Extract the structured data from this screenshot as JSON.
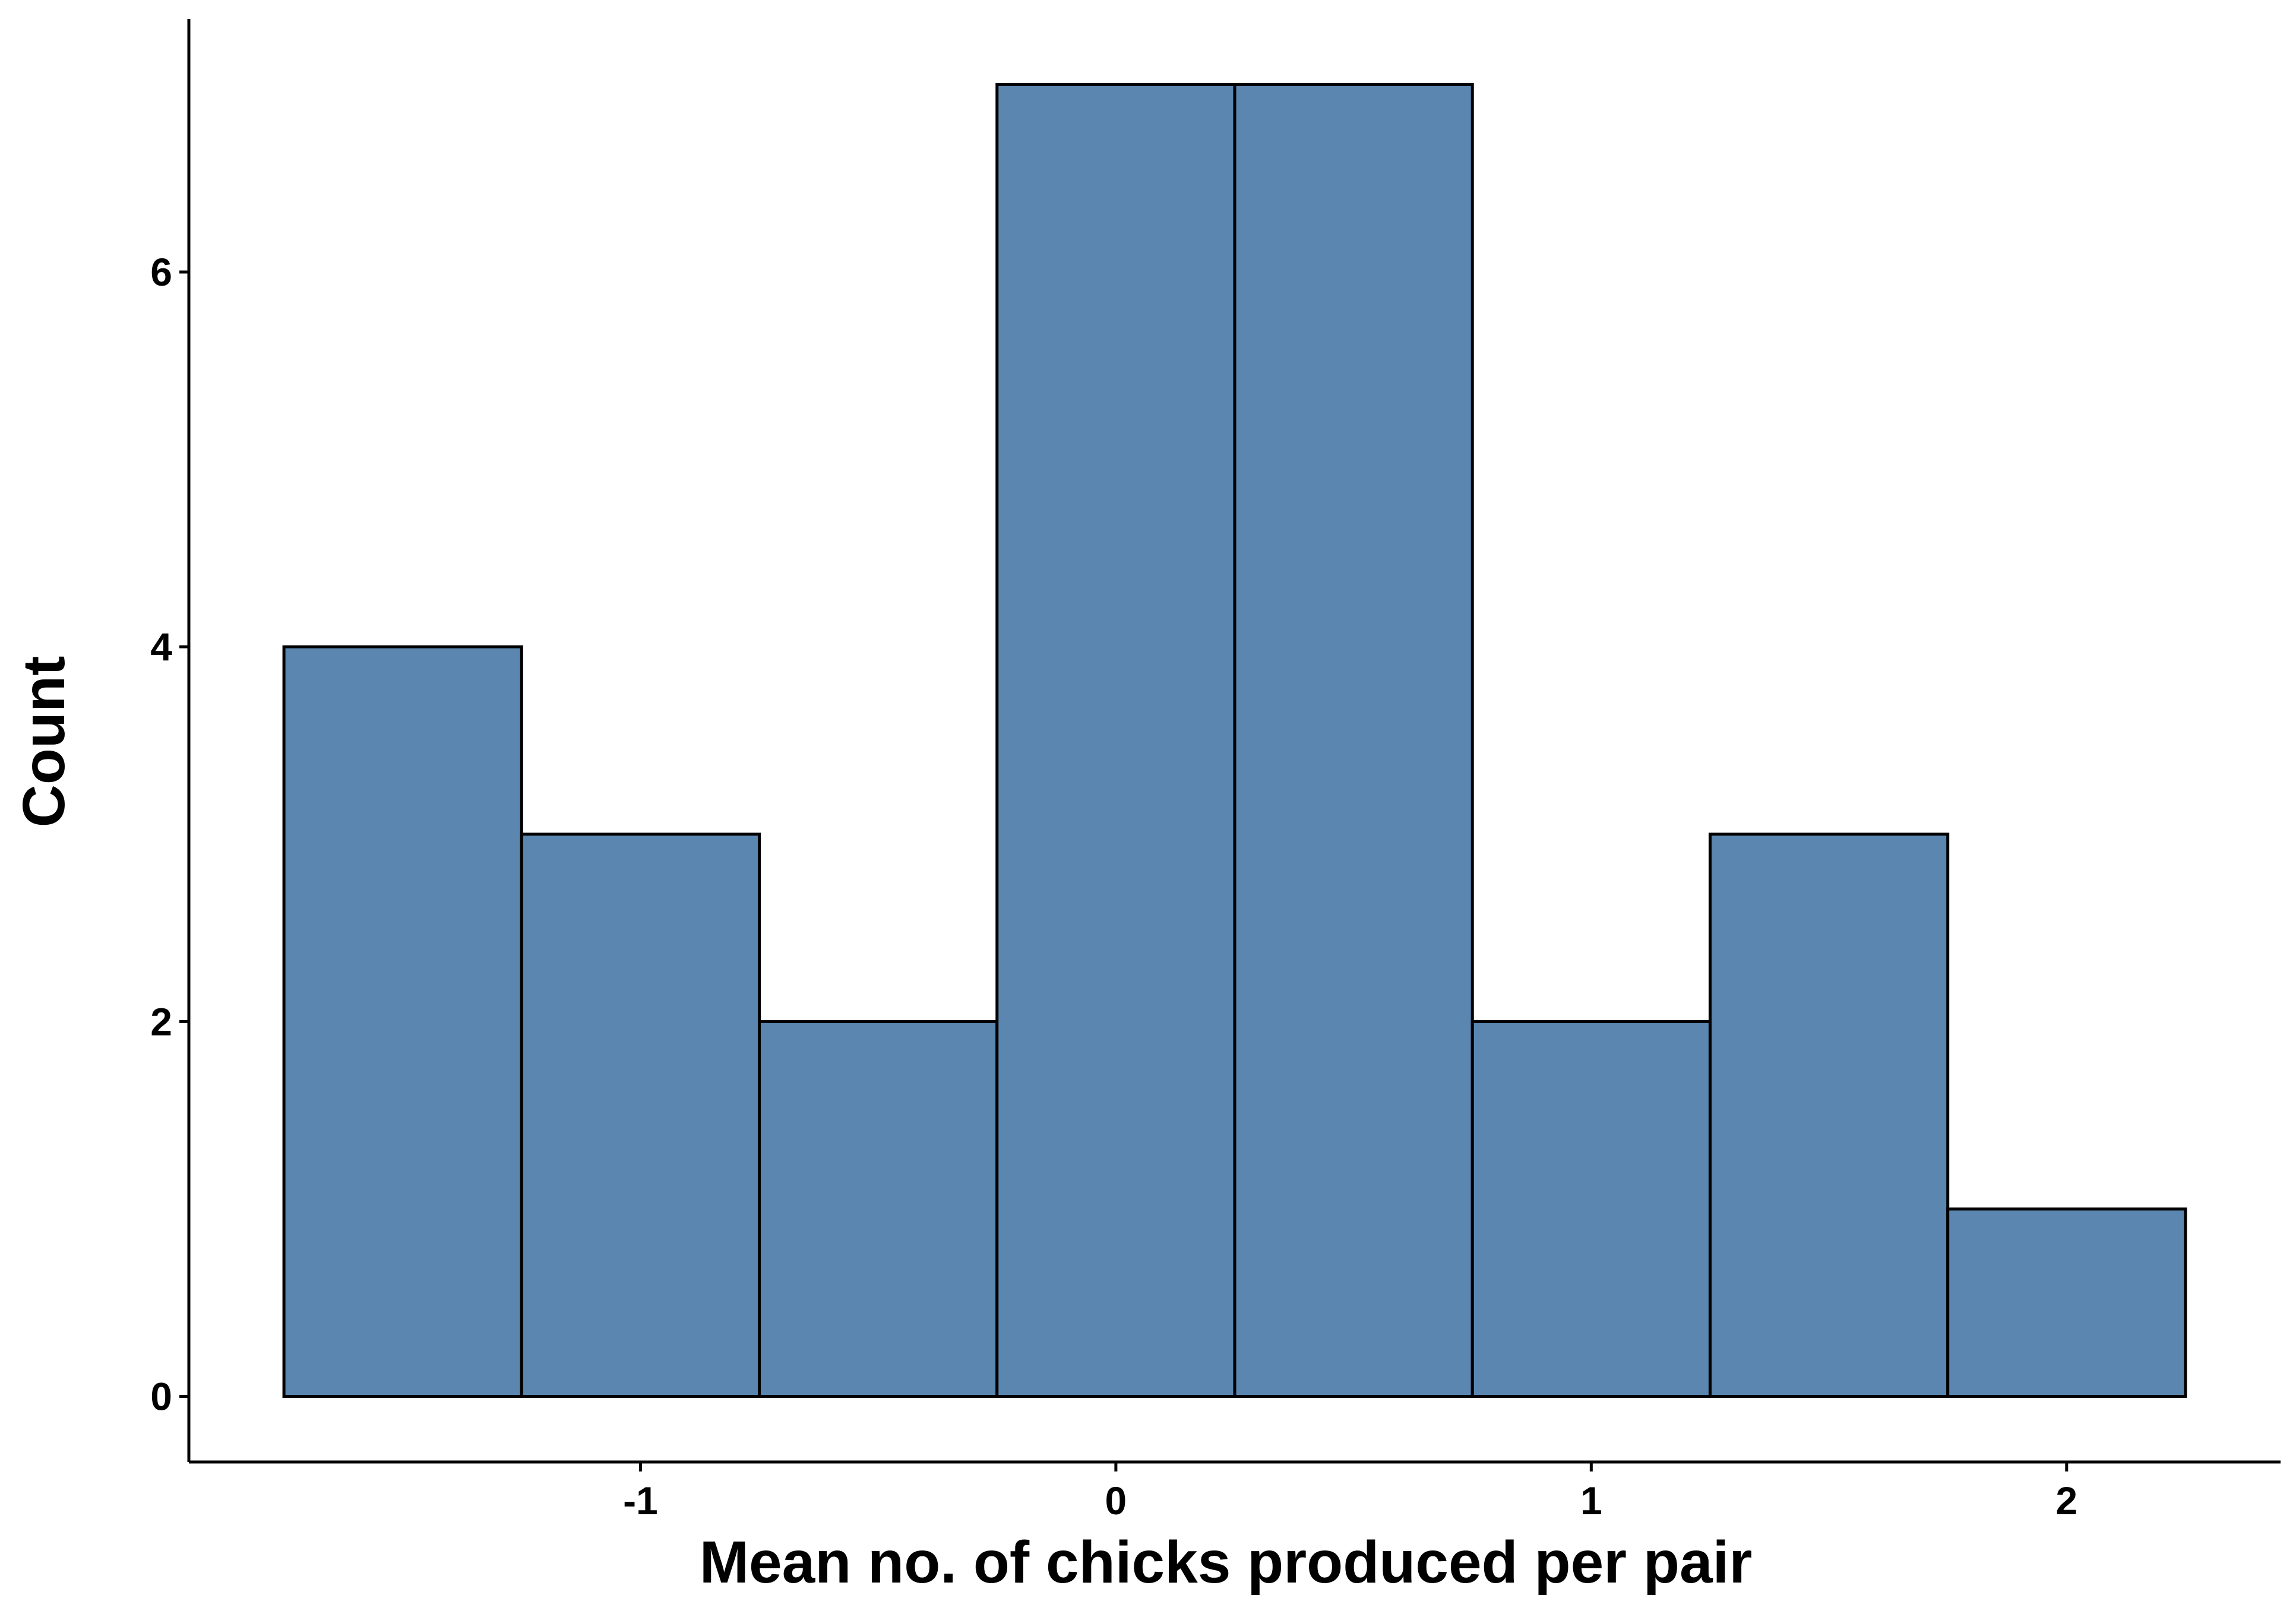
{
  "chart_data": {
    "type": "bar",
    "subtype": "histogram",
    "bins": [
      {
        "x0": -1.75,
        "x1": -1.25,
        "count": 4
      },
      {
        "x0": -1.25,
        "x1": -0.75,
        "count": 3
      },
      {
        "x0": -0.75,
        "x1": -0.25,
        "count": 2
      },
      {
        "x0": -0.25,
        "x1": 0.25,
        "count": 7
      },
      {
        "x0": 0.25,
        "x1": 0.75,
        "count": 7
      },
      {
        "x0": 0.75,
        "x1": 1.25,
        "count": 2
      },
      {
        "x0": 1.25,
        "x1": 1.75,
        "count": 3
      },
      {
        "x0": 1.75,
        "x1": 2.25,
        "count": 1
      }
    ],
    "xlabel": "Mean no. of chicks produced per pair",
    "ylabel": "Count",
    "xticks": [
      {
        "value": -1,
        "label": "-1"
      },
      {
        "value": 0,
        "label": "0"
      },
      {
        "value": 1,
        "label": "1"
      },
      {
        "value": 2,
        "label": "2"
      }
    ],
    "yticks": [
      {
        "value": 0,
        "label": "0"
      },
      {
        "value": 2,
        "label": "2"
      },
      {
        "value": 4,
        "label": "4"
      },
      {
        "value": 6,
        "label": "6"
      }
    ],
    "xlim": [
      -1.95,
      2.45
    ],
    "ylim": [
      -0.35,
      7.35
    ],
    "grid": false,
    "colors": {
      "bar_fill": "#5a86b0",
      "bar_stroke": "#000000",
      "axis": "#000000",
      "background": "#ffffff"
    }
  }
}
